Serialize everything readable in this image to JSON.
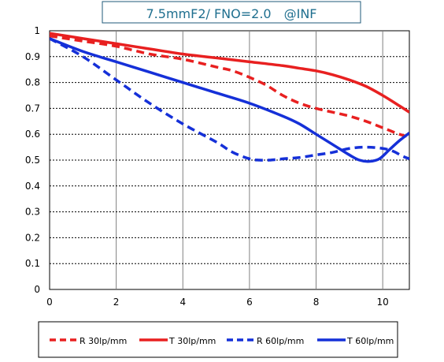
{
  "chart_data": {
    "type": "line",
    "title": "7.5mmF2/ FNO=2.0　@INF",
    "xlabel": "",
    "ylabel": "",
    "xlim": [
      0,
      10.8
    ],
    "ylim": [
      0,
      1
    ],
    "grid": true,
    "legend_position": "bottom",
    "x_ticks": [
      0,
      2,
      4,
      6,
      8,
      10
    ],
    "y_ticks": [
      0,
      0.1,
      0.2,
      0.3,
      0.4,
      0.5,
      0.6,
      0.7,
      0.8,
      0.9,
      1
    ],
    "x_tick_labels": [
      "0",
      "2",
      "4",
      "6",
      "8",
      "10"
    ],
    "y_tick_labels": [
      "0",
      "0.1",
      "0.2",
      "0.3",
      "0.4",
      "0.5",
      "0.6",
      "0.7",
      "0.8",
      "0.9",
      "1"
    ],
    "series": [
      {
        "name": "R 30lp/mm",
        "color": "#e82020",
        "line_style": "dashed",
        "x": [
          0,
          1,
          2,
          3,
          4,
          5,
          5.5,
          6,
          6.5,
          7,
          7.5,
          8,
          8.5,
          9,
          9.5,
          10,
          10.5,
          10.8
        ],
        "y": [
          0.98,
          0.96,
          0.94,
          0.91,
          0.89,
          0.86,
          0.845,
          0.82,
          0.79,
          0.75,
          0.72,
          0.7,
          0.685,
          0.67,
          0.65,
          0.625,
          0.6,
          0.59
        ]
      },
      {
        "name": "T 30lp/mm",
        "color": "#e82020",
        "line_style": "solid",
        "x": [
          0,
          1,
          2,
          3,
          4,
          5,
          6,
          7,
          7.5,
          8,
          8.5,
          9,
          9.5,
          10,
          10.5,
          10.8
        ],
        "y": [
          0.99,
          0.97,
          0.95,
          0.93,
          0.91,
          0.895,
          0.88,
          0.865,
          0.855,
          0.845,
          0.83,
          0.81,
          0.785,
          0.75,
          0.71,
          0.685
        ]
      },
      {
        "name": "R 60lp/mm",
        "color": "#1530d8",
        "line_style": "dashed",
        "x": [
          0,
          1,
          2,
          3,
          4,
          5,
          5.5,
          6,
          6.3,
          6.6,
          7,
          7.5,
          8,
          8.5,
          9,
          9.5,
          10,
          10.3,
          10.6,
          10.8
        ],
        "y": [
          0.97,
          0.9,
          0.81,
          0.72,
          0.64,
          0.57,
          0.53,
          0.505,
          0.5,
          0.5,
          0.505,
          0.51,
          0.52,
          0.53,
          0.545,
          0.55,
          0.545,
          0.535,
          0.515,
          0.505
        ]
      },
      {
        "name": "T 60lp/mm",
        "color": "#1530d8",
        "line_style": "solid",
        "x": [
          0,
          1,
          2,
          3,
          4,
          5,
          6,
          7,
          7.5,
          8,
          8.5,
          9,
          9.3,
          9.6,
          9.9,
          10.2,
          10.5,
          10.8
        ],
        "y": [
          0.97,
          0.92,
          0.88,
          0.84,
          0.8,
          0.76,
          0.72,
          0.67,
          0.64,
          0.6,
          0.56,
          0.52,
          0.5,
          0.495,
          0.505,
          0.54,
          0.575,
          0.605
        ]
      }
    ]
  }
}
